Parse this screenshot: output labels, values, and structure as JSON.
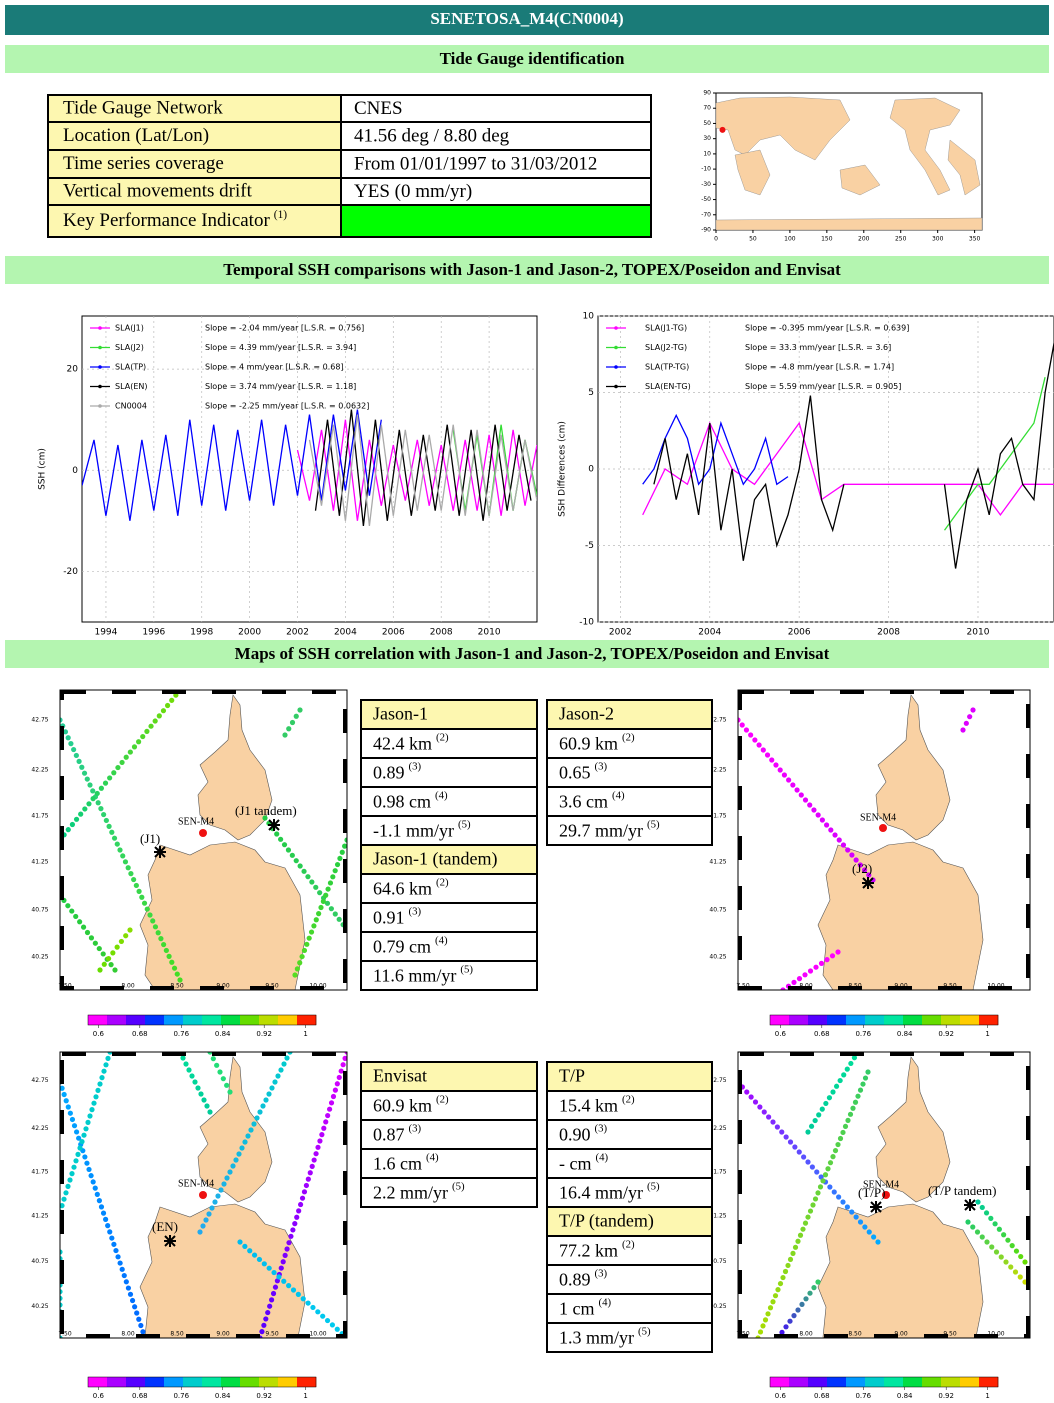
{
  "header": {
    "title": "SENETOSA_M4(CN0004)"
  },
  "sections": [
    "Tide Gauge identification",
    "Temporal SSH comparisons with Jason-1 and Jason-2, TOPEX/Poseidon and Envisat",
    "Maps of SSH correlation with Jason-1 and Jason-2, TOPEX/Poseidon and Envisat"
  ],
  "tide_gauge_table": {
    "rows": [
      {
        "label": "Tide Gauge Network",
        "value": "CNES"
      },
      {
        "label": "Location (Lat/Lon)",
        "value": "41.56 deg / 8.80 deg"
      },
      {
        "label": "Time series coverage",
        "value": "From 01/01/1997 to 31/03/2012"
      },
      {
        "label": "Vertical movements drift",
        "value": "YES (0 mm/yr)"
      },
      {
        "label": "Key Performance Indicator",
        "note": "(1)",
        "status_color": "#00ff00"
      }
    ]
  },
  "world_map": {
    "xlim": [
      0,
      360
    ],
    "ylim": [
      -90,
      90
    ],
    "xticks": [
      0,
      50,
      100,
      150,
      200,
      250,
      300,
      350
    ],
    "yticks": [
      90,
      70,
      50,
      30,
      10,
      -10,
      -30,
      -50,
      -70,
      -90
    ]
  },
  "chart_data": [
    {
      "type": "line",
      "ylabel": "SSH (cm)",
      "xlim": [
        1993,
        2012
      ],
      "ylim": [
        -30,
        30.5
      ],
      "xticks": [
        1994,
        1996,
        1998,
        2000,
        2002,
        2004,
        2006,
        2008,
        2010
      ],
      "yticks": [
        -20,
        0,
        20
      ],
      "grid": true,
      "series": [
        {
          "name": "SLA(J1)",
          "label": "Slope = -2.04 mm/year [L.S.R. = 0.756]",
          "color": "#ff00ff",
          "x": [
            2002,
            2002.5,
            2003,
            2003.5,
            2004,
            2004.5,
            2005,
            2005.5,
            2006,
            2006.5,
            2007,
            2007.5,
            2008,
            2008.5,
            2009,
            2009.5,
            2010,
            2010.5,
            2011,
            2011.5,
            2012
          ],
          "values": [
            4,
            -6,
            8,
            -8,
            10,
            -10,
            6,
            -7,
            5,
            -6,
            6,
            -7,
            5,
            -8,
            6,
            -8,
            7,
            -9,
            8,
            -7,
            5
          ]
        },
        {
          "name": "SLA(J2)",
          "label": "Slope = 4.39 mm/year [L.S.R. = 3.94]",
          "color": "#33dd33",
          "x": [
            2008.5,
            2009,
            2009.5,
            2010,
            2010.5,
            2011,
            2011.5,
            2012
          ],
          "values": [
            8,
            -8,
            7,
            -9,
            9,
            -8,
            6,
            -5
          ]
        },
        {
          "name": "SLA(TP)",
          "label": "Slope = 4 mm/year [L.S.R. = 0.68]",
          "color": "#0000ff",
          "x": [
            1993,
            1993.5,
            1994,
            1994.5,
            1995,
            1995.5,
            1996,
            1996.5,
            1997,
            1997.5,
            1998,
            1998.5,
            1999,
            1999.5,
            2000,
            2000.5,
            2001,
            2001.5,
            2002,
            2002.5,
            2003,
            2003.5,
            2004,
            2004.5,
            2005,
            2005.5
          ],
          "values": [
            -3,
            6,
            -9,
            5,
            -10,
            6,
            -8,
            7,
            -9,
            10,
            -7,
            9,
            -8,
            8,
            -6,
            10,
            -7,
            9,
            -5,
            11,
            -6,
            11,
            -4,
            12,
            -5,
            10
          ]
        },
        {
          "name": "SLA(EN)",
          "label": "Slope = 3.74 mm/year [L.S.R. = 1.18]",
          "color": "#000000",
          "x": [
            2002.75,
            2003.25,
            2003.75,
            2004.25,
            2004.75,
            2005.25,
            2005.75,
            2006.25,
            2006.75,
            2007.25,
            2007.75,
            2008.25,
            2008.75,
            2009.25,
            2009.75,
            2010.25,
            2010.75,
            2011.25,
            2011.75
          ],
          "values": [
            -8,
            10,
            -9,
            12,
            -11,
            10,
            -10,
            8,
            -9,
            7,
            -8,
            9,
            -9,
            8,
            -10,
            9,
            -8,
            7,
            -6
          ]
        },
        {
          "name": "CN0004",
          "label": "Slope = -2.25 mm/year [L.S.R. = 0.0632]",
          "color": "#aaaaaa",
          "x": [
            2002.5,
            2003,
            2003.5,
            2004,
            2004.5,
            2005,
            2005.5,
            2006,
            2006.5,
            2007,
            2007.5,
            2008,
            2008.5,
            2009,
            2009.5,
            2010,
            2010.5,
            2011,
            2011.5,
            2012
          ],
          "values": [
            6,
            -7,
            9,
            -10,
            11,
            -11,
            9,
            -9,
            8,
            -8,
            7,
            -8,
            9,
            -9,
            8,
            -9,
            7,
            -8,
            6,
            -6
          ]
        }
      ]
    },
    {
      "type": "line",
      "ylabel": "SSH Differences (cm)",
      "xlim": [
        2001.5,
        2011.7
      ],
      "ylim": [
        -10,
        10
      ],
      "xticks": [
        2002,
        2004,
        2006,
        2008,
        2010
      ],
      "yticks": [
        -10,
        -5,
        0,
        5,
        10
      ],
      "grid": true,
      "series": [
        {
          "name": "SLA(J1-TG)",
          "label": "Slope = -0.395 mm/year [L.S.R. = 0.639]",
          "color": "#ff00ff",
          "x": [
            2002.5,
            2003,
            2003.5,
            2004,
            2004.5,
            2005,
            2005.5,
            2006,
            2006.5,
            2007,
            2007.5,
            2008,
            2008.5,
            2009,
            2009.5,
            2010,
            2010.5,
            2011,
            2011.5,
            2012
          ],
          "values": [
            -3,
            0,
            -1,
            3,
            0,
            -1,
            1,
            3,
            -2,
            -1,
            -1,
            -1,
            -1,
            -1,
            -1,
            -1,
            -3,
            -1,
            -1,
            -1
          ]
        },
        {
          "name": "SLA(J2-TG)",
          "label": "Slope = 33.3 mm/year [L.S.R. = 3.6]",
          "color": "#33dd33",
          "x": [
            2009.25,
            2009.5,
            2009.75,
            2010,
            2010.25,
            2010.5,
            2010.75,
            2011,
            2011.25,
            2011.5
          ],
          "values": [
            -4,
            -3,
            -2,
            -1,
            -1,
            0,
            1,
            2,
            3,
            6
          ]
        },
        {
          "name": "SLA(TP-TG)",
          "label": "Slope = -4.8 mm/year [L.S.R. = 1.74]",
          "color": "#0000ff",
          "x": [
            2002.5,
            2002.75,
            2003,
            2003.25,
            2003.5,
            2003.75,
            2004,
            2004.25,
            2004.5,
            2004.75,
            2005,
            2005.25,
            2005.5,
            2005.75
          ],
          "values": [
            -1,
            0,
            2,
            3.5,
            2,
            -1,
            0,
            3,
            1,
            -1,
            0,
            2,
            -1,
            -0.5
          ]
        },
        {
          "name": "SLA(EN-TG)",
          "label": "Slope = 5.59 mm/year [L.S.R. = 0.905]",
          "color": "#000000",
          "x": [
            2002.75,
            2003,
            2003.25,
            2003.5,
            2003.75,
            2004,
            2004.25,
            2004.5,
            2004.75,
            2005,
            2005.25,
            2005.5,
            2005.75,
            2006,
            2006.25,
            2006.5,
            2006.75,
            2007,
            2008,
            2009.25,
            2009.5,
            2009.75,
            2010,
            2010.25,
            2010.5,
            2010.75,
            2011,
            2011.25,
            2011.5,
            2011.75
          ],
          "values": [
            -1,
            2,
            -2,
            1,
            -3,
            3,
            -4,
            0,
            -6,
            -2,
            -1,
            -5,
            -3,
            0,
            4.8,
            -2,
            -4,
            -1,
            null,
            -1,
            -6.5,
            -2,
            0,
            -3,
            1,
            2,
            -1,
            -2,
            5,
            9
          ]
        }
      ]
    }
  ],
  "map_axes": {
    "xticks": [
      "7.50",
      "8.00",
      "8.50",
      "9.00",
      "9.50",
      "10.00"
    ],
    "yticks": [
      "42.75",
      "42.25",
      "41.75",
      "41.25",
      "40.75",
      "40.25"
    ]
  },
  "colorbar": {
    "clim": [
      0.58,
      1.02
    ],
    "ticks": [
      0.6,
      0.68,
      0.76,
      0.84,
      0.92,
      1
    ]
  },
  "maps": [
    {
      "labels": [
        "SEN-M4",
        "(J1)",
        "(J1 tandem)"
      ]
    },
    {
      "labels": [
        "SEN-M4",
        "(J2)"
      ]
    },
    {
      "labels": [
        "SEN-M4",
        "(EN)"
      ]
    },
    {
      "labels": [
        "SEN-M4",
        "(T/P)",
        "(T/P tandem)"
      ]
    }
  ],
  "stats_tables": [
    {
      "title": "Jason-1",
      "rows": [
        {
          "text": "42.4 km",
          "note": "(2)"
        },
        {
          "text": "0.89",
          "note": "(3)"
        },
        {
          "text": "0.98 cm",
          "note": "(4)"
        },
        {
          "text": "-1.1 mm/yr",
          "note": "(5)"
        }
      ]
    },
    {
      "title": "Jason-1 (tandem)",
      "rows": [
        {
          "text": "64.6 km",
          "note": "(2)"
        },
        {
          "text": "0.91",
          "note": "(3)"
        },
        {
          "text": "0.79 cm",
          "note": "(4)"
        },
        {
          "text": "11.6 mm/yr",
          "note": "(5)"
        }
      ]
    },
    {
      "title": "Jason-2",
      "rows": [
        {
          "text": "60.9 km",
          "note": "(2)"
        },
        {
          "text": "0.65",
          "note": "(3)"
        },
        {
          "text": "3.6 cm",
          "note": "(4)"
        },
        {
          "text": "29.7 mm/yr",
          "note": "(5)"
        }
      ]
    },
    {
      "title": "Envisat",
      "rows": [
        {
          "text": "60.9 km",
          "note": "(2)"
        },
        {
          "text": "0.87",
          "note": "(3)"
        },
        {
          "text": "1.6 cm",
          "note": "(4)"
        },
        {
          "text": "2.2 mm/yr",
          "note": "(5)"
        }
      ]
    },
    {
      "title": "T/P",
      "rows": [
        {
          "text": "15.4 km",
          "note": "(2)"
        },
        {
          "text": "0.90",
          "note": "(3)"
        },
        {
          "text": "- cm",
          "note": "(4)"
        },
        {
          "text": "16.4 mm/yr",
          "note": "(5)"
        }
      ]
    },
    {
      "title": "T/P (tandem)",
      "rows": [
        {
          "text": "77.2 km",
          "note": "(2)"
        },
        {
          "text": "0.89",
          "note": "(3)"
        },
        {
          "text": "1 cm",
          "note": "(4)"
        },
        {
          "text": "1.3 mm/yr",
          "note": "(5)"
        }
      ]
    }
  ]
}
